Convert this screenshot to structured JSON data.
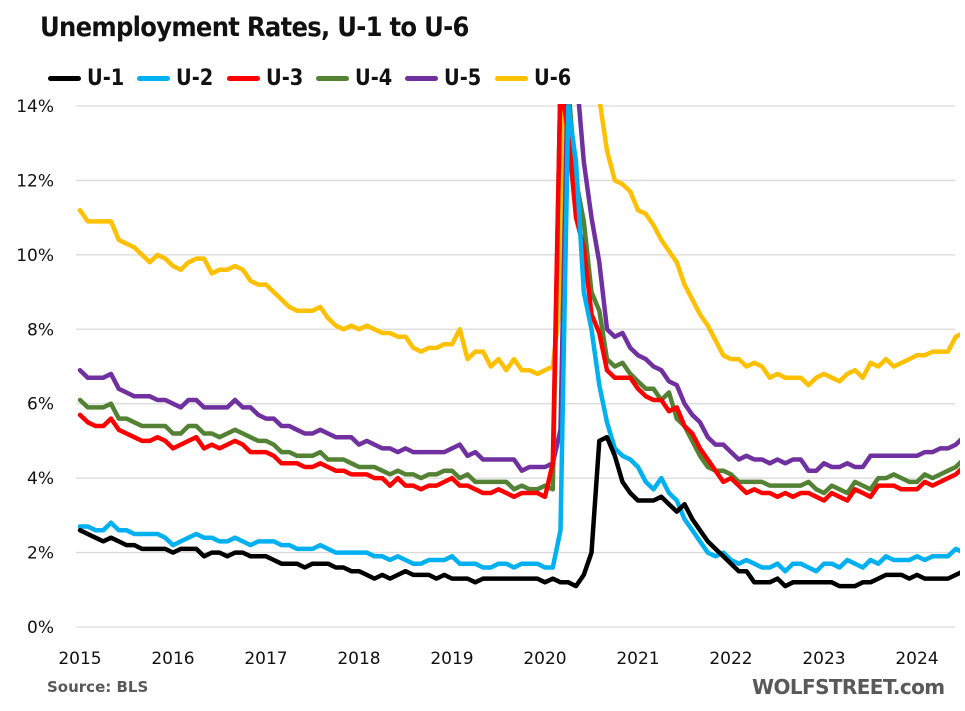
{
  "chart_data": {
    "type": "line",
    "title": "Unemployment Rates, U-1 to U-6",
    "xlabel": "",
    "ylabel": "",
    "ylim": [
      0,
      14
    ],
    "y_ticks": [
      "0%",
      "2%",
      "4%",
      "6%",
      "8%",
      "10%",
      "12%",
      "14%"
    ],
    "y_tick_values": [
      0,
      2,
      4,
      6,
      8,
      10,
      12,
      14
    ],
    "x_ticks": [
      "2015",
      "2016",
      "2017",
      "2018",
      "2019",
      "2020",
      "2021",
      "2022",
      "2023",
      "2024"
    ],
    "x_range_months": "Jan 2015 - Aug 2024 (monthly)",
    "grid": true,
    "legend_position": "top-left",
    "source": "Source: BLS",
    "watermark": "WOLFSTREET.com",
    "series": [
      {
        "name": "U-1",
        "color": "#000000",
        "values": [
          2.6,
          2.5,
          2.4,
          2.3,
          2.4,
          2.3,
          2.2,
          2.2,
          2.1,
          2.1,
          2.1,
          2.1,
          2.0,
          2.1,
          2.1,
          2.1,
          1.9,
          2.0,
          2.0,
          1.9,
          2.0,
          2.0,
          1.9,
          1.9,
          1.9,
          1.8,
          1.7,
          1.7,
          1.7,
          1.6,
          1.7,
          1.7,
          1.7,
          1.6,
          1.6,
          1.5,
          1.5,
          1.4,
          1.3,
          1.4,
          1.3,
          1.4,
          1.5,
          1.4,
          1.4,
          1.4,
          1.3,
          1.4,
          1.3,
          1.3,
          1.3,
          1.2,
          1.3,
          1.3,
          1.3,
          1.3,
          1.3,
          1.3,
          1.3,
          1.3,
          1.2,
          1.3,
          1.2,
          1.2,
          1.1,
          1.4,
          2.0,
          5.0,
          5.1,
          4.6,
          3.9,
          3.6,
          3.4,
          3.4,
          3.4,
          3.5,
          3.3,
          3.1,
          3.3,
          2.9,
          2.6,
          2.3,
          2.1,
          1.9,
          1.7,
          1.5,
          1.5,
          1.2,
          1.2,
          1.2,
          1.3,
          1.1,
          1.2,
          1.2,
          1.2,
          1.2,
          1.2,
          1.2,
          1.1,
          1.1,
          1.1,
          1.2,
          1.2,
          1.3,
          1.4,
          1.4,
          1.4,
          1.3,
          1.4,
          1.3,
          1.3,
          1.3,
          1.3,
          1.4,
          1.5,
          1.6,
          1.6
        ]
      },
      {
        "name": "U-2",
        "color": "#00B0F0",
        "values": [
          2.7,
          2.7,
          2.6,
          2.6,
          2.8,
          2.6,
          2.6,
          2.5,
          2.5,
          2.5,
          2.5,
          2.4,
          2.2,
          2.3,
          2.4,
          2.5,
          2.4,
          2.4,
          2.3,
          2.3,
          2.4,
          2.3,
          2.2,
          2.3,
          2.3,
          2.3,
          2.2,
          2.2,
          2.1,
          2.1,
          2.1,
          2.2,
          2.1,
          2.0,
          2.0,
          2.0,
          2.0,
          2.0,
          1.9,
          1.9,
          1.8,
          1.9,
          1.8,
          1.7,
          1.7,
          1.8,
          1.8,
          1.8,
          1.9,
          1.7,
          1.7,
          1.7,
          1.6,
          1.6,
          1.7,
          1.7,
          1.6,
          1.7,
          1.7,
          1.7,
          1.6,
          1.6,
          2.6,
          14.0,
          12.5,
          9.0,
          8.0,
          6.5,
          5.5,
          4.8,
          4.6,
          4.5,
          4.3,
          3.9,
          3.7,
          4.0,
          3.6,
          3.4,
          2.9,
          2.6,
          2.3,
          2.0,
          1.9,
          2.0,
          1.8,
          1.7,
          1.8,
          1.7,
          1.6,
          1.6,
          1.7,
          1.5,
          1.7,
          1.7,
          1.6,
          1.5,
          1.7,
          1.7,
          1.6,
          1.8,
          1.7,
          1.6,
          1.8,
          1.7,
          1.9,
          1.8,
          1.8,
          1.8,
          1.9,
          1.8,
          1.9,
          1.9,
          1.9,
          2.1,
          2.0
        ]
      },
      {
        "name": "U-3",
        "color": "#FF0000",
        "values": [
          5.7,
          5.5,
          5.4,
          5.4,
          5.6,
          5.3,
          5.2,
          5.1,
          5.0,
          5.0,
          5.1,
          5.0,
          4.8,
          4.9,
          5.0,
          5.1,
          4.8,
          4.9,
          4.8,
          4.9,
          5.0,
          4.9,
          4.7,
          4.7,
          4.7,
          4.6,
          4.4,
          4.4,
          4.4,
          4.3,
          4.3,
          4.4,
          4.3,
          4.2,
          4.2,
          4.1,
          4.1,
          4.1,
          4.0,
          4.0,
          3.8,
          4.0,
          3.8,
          3.8,
          3.7,
          3.8,
          3.8,
          3.9,
          4.0,
          3.8,
          3.8,
          3.7,
          3.6,
          3.6,
          3.7,
          3.6,
          3.5,
          3.6,
          3.6,
          3.6,
          3.5,
          4.4,
          14.7,
          13.2,
          11.0,
          10.2,
          8.4,
          7.9,
          6.9,
          6.7,
          6.7,
          6.7,
          6.4,
          6.2,
          6.1,
          6.1,
          5.8,
          5.9,
          5.4,
          5.2,
          4.8,
          4.5,
          4.2,
          3.9,
          4.0,
          3.8,
          3.6,
          3.7,
          3.6,
          3.6,
          3.5,
          3.6,
          3.5,
          3.6,
          3.6,
          3.5,
          3.4,
          3.6,
          3.5,
          3.4,
          3.7,
          3.6,
          3.5,
          3.8,
          3.8,
          3.8,
          3.7,
          3.7,
          3.7,
          3.9,
          3.8,
          3.9,
          4.0,
          4.1,
          4.3,
          4.2
        ]
      },
      {
        "name": "U-4",
        "color": "#548235",
        "values": [
          6.1,
          5.9,
          5.9,
          5.9,
          6.0,
          5.6,
          5.6,
          5.5,
          5.4,
          5.4,
          5.4,
          5.4,
          5.2,
          5.2,
          5.4,
          5.4,
          5.2,
          5.2,
          5.1,
          5.2,
          5.3,
          5.2,
          5.1,
          5.0,
          5.0,
          4.9,
          4.7,
          4.7,
          4.6,
          4.6,
          4.6,
          4.7,
          4.5,
          4.5,
          4.5,
          4.4,
          4.3,
          4.3,
          4.3,
          4.2,
          4.1,
          4.2,
          4.1,
          4.1,
          4.0,
          4.1,
          4.1,
          4.2,
          4.2,
          4.0,
          4.1,
          3.9,
          3.9,
          3.9,
          3.9,
          3.9,
          3.7,
          3.8,
          3.7,
          3.7,
          3.8,
          3.7,
          14.8,
          14.5,
          12.0,
          10.9,
          9.0,
          8.5,
          7.2,
          7.0,
          7.1,
          6.8,
          6.6,
          6.4,
          6.4,
          6.1,
          6.3,
          5.6,
          5.4,
          5.0,
          4.6,
          4.3,
          4.2,
          4.2,
          4.1,
          3.9,
          3.9,
          3.9,
          3.9,
          3.8,
          3.8,
          3.8,
          3.8,
          3.8,
          3.9,
          3.7,
          3.6,
          3.8,
          3.7,
          3.6,
          3.9,
          3.8,
          3.7,
          4.0,
          4.0,
          4.1,
          4.0,
          3.9,
          3.9,
          4.1,
          4.0,
          4.1,
          4.2,
          4.3,
          4.5,
          4.4
        ]
      },
      {
        "name": "U-5",
        "color": "#7030A0",
        "values": [
          6.9,
          6.7,
          6.7,
          6.7,
          6.8,
          6.4,
          6.3,
          6.2,
          6.2,
          6.2,
          6.1,
          6.1,
          6.0,
          5.9,
          6.1,
          6.1,
          5.9,
          5.9,
          5.9,
          5.9,
          6.1,
          5.9,
          5.9,
          5.7,
          5.6,
          5.6,
          5.4,
          5.4,
          5.3,
          5.2,
          5.2,
          5.3,
          5.2,
          5.1,
          5.1,
          5.1,
          4.9,
          5.0,
          4.9,
          4.8,
          4.8,
          4.7,
          4.8,
          4.7,
          4.7,
          4.7,
          4.7,
          4.7,
          4.8,
          4.9,
          4.6,
          4.7,
          4.5,
          4.5,
          4.5,
          4.5,
          4.5,
          4.2,
          4.3,
          4.3,
          4.3,
          4.4,
          5.3,
          15.5,
          15.0,
          12.5,
          11.0,
          9.8,
          8.0,
          7.8,
          7.9,
          7.5,
          7.3,
          7.2,
          7.0,
          6.9,
          6.6,
          6.5,
          6.0,
          5.7,
          5.5,
          5.1,
          4.9,
          4.9,
          4.7,
          4.5,
          4.6,
          4.5,
          4.5,
          4.4,
          4.5,
          4.4,
          4.5,
          4.5,
          4.2,
          4.2,
          4.4,
          4.3,
          4.3,
          4.4,
          4.3,
          4.3,
          4.6,
          4.6,
          4.6,
          4.6,
          4.6,
          4.6,
          4.6,
          4.7,
          4.7,
          4.8,
          4.8,
          4.9,
          5.1,
          5.0
        ]
      },
      {
        "name": "U-6",
        "color": "#FFC000",
        "values": [
          11.2,
          10.9,
          10.9,
          10.9,
          10.9,
          10.4,
          10.3,
          10.2,
          10.0,
          9.8,
          10.0,
          9.9,
          9.7,
          9.6,
          9.8,
          9.9,
          9.9,
          9.5,
          9.6,
          9.6,
          9.7,
          9.6,
          9.3,
          9.2,
          9.2,
          9.0,
          8.8,
          8.6,
          8.5,
          8.5,
          8.5,
          8.6,
          8.3,
          8.1,
          8.0,
          8.1,
          8.0,
          8.1,
          8.0,
          7.9,
          7.9,
          7.8,
          7.8,
          7.5,
          7.4,
          7.5,
          7.5,
          7.6,
          7.6,
          8.0,
          7.2,
          7.4,
          7.4,
          7.0,
          7.2,
          6.9,
          7.2,
          6.9,
          6.9,
          6.8,
          6.9,
          7.0,
          8.8,
          22.8,
          21.2,
          18.0,
          16.5,
          14.2,
          12.8,
          12.0,
          11.9,
          11.7,
          11.2,
          11.1,
          10.8,
          10.4,
          10.1,
          9.8,
          9.2,
          8.8,
          8.4,
          8.1,
          7.7,
          7.3,
          7.2,
          7.2,
          7.0,
          7.1,
          7.0,
          6.7,
          6.8,
          6.7,
          6.7,
          6.7,
          6.5,
          6.7,
          6.8,
          6.7,
          6.6,
          6.8,
          6.9,
          6.7,
          7.1,
          7.0,
          7.2,
          7.0,
          7.1,
          7.2,
          7.3,
          7.3,
          7.4,
          7.4,
          7.4,
          7.8,
          7.9
        ]
      }
    ]
  }
}
